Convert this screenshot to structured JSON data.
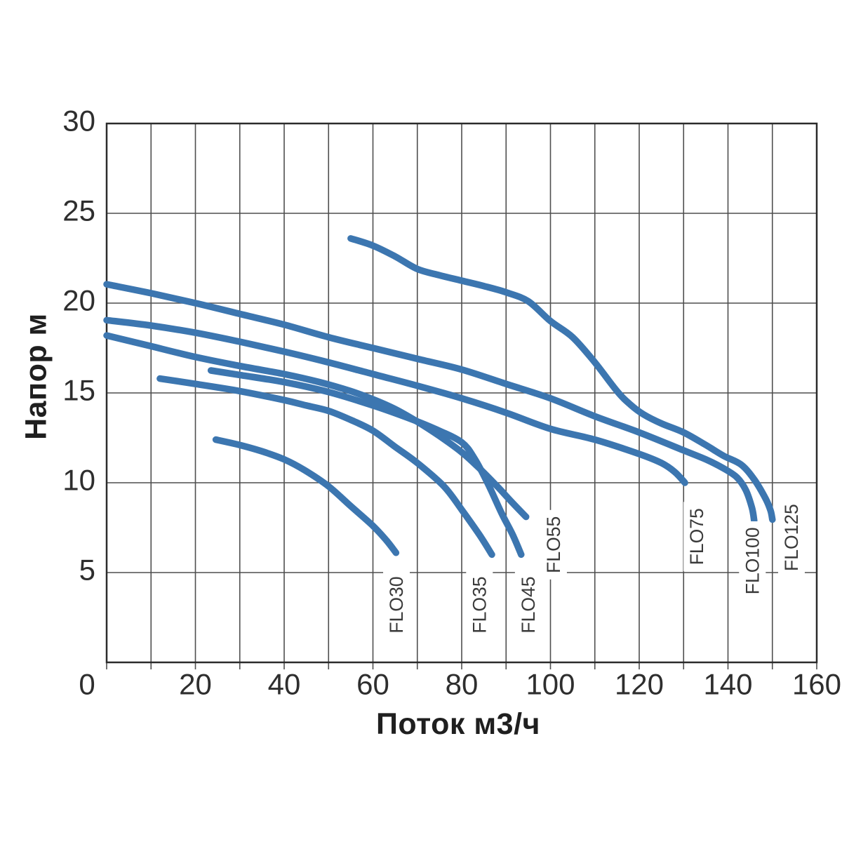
{
  "chart_data": {
    "type": "line",
    "title": "",
    "xlabel": "Поток м3/ч",
    "ylabel": "Напор м",
    "xlim": [
      0,
      160
    ],
    "ylim": [
      0,
      30
    ],
    "x_tick_labels": [
      0,
      20,
      40,
      60,
      80,
      100,
      120,
      140,
      160
    ],
    "x_grid_step": 10,
    "y_tick_labels": [
      5,
      10,
      15,
      20,
      25,
      30
    ],
    "y_grid_step": 5,
    "grid": "on",
    "legend_position": "curve-end-labels-rotated",
    "series": [
      {
        "name": "FLO125",
        "points": [
          [
            55,
            23.6
          ],
          [
            60,
            23.2
          ],
          [
            65,
            22.6
          ],
          [
            70,
            21.9
          ],
          [
            75,
            21.55
          ],
          [
            80,
            21.25
          ],
          [
            85,
            20.95
          ],
          [
            90,
            20.6
          ],
          [
            95,
            20.1
          ],
          [
            100,
            19.0
          ],
          [
            105,
            18.1
          ],
          [
            110,
            16.7
          ],
          [
            115,
            15.1
          ],
          [
            118,
            14.35
          ],
          [
            121,
            13.8
          ],
          [
            125,
            13.3
          ],
          [
            130,
            12.8
          ],
          [
            135,
            12.1
          ],
          [
            139,
            11.5
          ],
          [
            143,
            11.0
          ],
          [
            146,
            10.15
          ],
          [
            148.5,
            9.1
          ],
          [
            149.6,
            8.45
          ],
          [
            150,
            7.95
          ]
        ],
        "label": {
          "x": 154.3,
          "y": 6.95
        }
      },
      {
        "name": "FLO100",
        "points": [
          [
            0,
            21.05
          ],
          [
            10,
            20.55
          ],
          [
            20,
            20.0
          ],
          [
            30,
            19.4
          ],
          [
            40,
            18.8
          ],
          [
            50,
            18.1
          ],
          [
            60,
            17.5
          ],
          [
            70,
            16.9
          ],
          [
            80,
            16.3
          ],
          [
            90,
            15.5
          ],
          [
            100,
            14.7
          ],
          [
            110,
            13.7
          ],
          [
            120,
            12.8
          ],
          [
            130,
            11.8
          ],
          [
            135,
            11.3
          ],
          [
            139,
            10.8
          ],
          [
            142,
            10.3
          ],
          [
            144,
            9.6
          ],
          [
            145.4,
            8.6
          ],
          [
            145.9,
            7.9
          ]
        ],
        "label": {
          "x": 145.5,
          "y": 5.65
        }
      },
      {
        "name": "FLO75",
        "points": [
          [
            0,
            19.05
          ],
          [
            10,
            18.75
          ],
          [
            20,
            18.35
          ],
          [
            30,
            17.85
          ],
          [
            40,
            17.3
          ],
          [
            50,
            16.7
          ],
          [
            60,
            16.05
          ],
          [
            70,
            15.4
          ],
          [
            80,
            14.7
          ],
          [
            90,
            13.9
          ],
          [
            100,
            13.0
          ],
          [
            110,
            12.4
          ],
          [
            120,
            11.6
          ],
          [
            125,
            11.1
          ],
          [
            128,
            10.6
          ],
          [
            130.3,
            10.0
          ]
        ],
        "label": {
          "x": 133.0,
          "y": 7.0
        }
      },
      {
        "name": "FLO55",
        "points": [
          [
            0,
            18.2
          ],
          [
            10,
            17.6
          ],
          [
            20,
            17.0
          ],
          [
            30,
            16.5
          ],
          [
            40,
            16.05
          ],
          [
            48,
            15.6
          ],
          [
            55,
            15.1
          ],
          [
            60,
            14.65
          ],
          [
            65,
            14.1
          ],
          [
            70,
            13.4
          ],
          [
            75,
            12.6
          ],
          [
            80,
            11.7
          ],
          [
            84,
            10.8
          ],
          [
            88,
            9.8
          ],
          [
            91,
            9.0
          ],
          [
            94.5,
            8.1
          ]
        ],
        "label": {
          "x": 100.7,
          "y": 6.55
        }
      },
      {
        "name": "FLO45",
        "points": [
          [
            23.5,
            16.25
          ],
          [
            30,
            16.0
          ],
          [
            40,
            15.6
          ],
          [
            50,
            15.05
          ],
          [
            60,
            14.3
          ],
          [
            68,
            13.6
          ],
          [
            74,
            13.0
          ],
          [
            80,
            12.25
          ],
          [
            83,
            11.3
          ],
          [
            86,
            9.9
          ],
          [
            89,
            8.3
          ],
          [
            91.5,
            7.1
          ],
          [
            93.4,
            6.0
          ]
        ],
        "label": {
          "x": 95.0,
          "y": 3.2
        }
      },
      {
        "name": "FLO35",
        "points": [
          [
            12,
            15.8
          ],
          [
            20,
            15.5
          ],
          [
            30,
            15.1
          ],
          [
            40,
            14.6
          ],
          [
            45,
            14.3
          ],
          [
            50,
            14.0
          ],
          [
            55,
            13.5
          ],
          [
            60,
            12.9
          ],
          [
            65,
            12.0
          ],
          [
            70,
            11.1
          ],
          [
            76,
            9.8
          ],
          [
            80,
            8.5
          ],
          [
            84,
            7.1
          ],
          [
            86.8,
            6.0
          ]
        ],
        "label": {
          "x": 84.0,
          "y": 3.2
        }
      },
      {
        "name": "FLO30",
        "points": [
          [
            24.6,
            12.4
          ],
          [
            30,
            12.1
          ],
          [
            35,
            11.75
          ],
          [
            40,
            11.3
          ],
          [
            44.6,
            10.7
          ],
          [
            50,
            9.8
          ],
          [
            55,
            8.7
          ],
          [
            60,
            7.6
          ],
          [
            63,
            6.8
          ],
          [
            65.2,
            6.1
          ]
        ],
        "label": {
          "x": 65.3,
          "y": 3.2
        }
      }
    ]
  },
  "style": {
    "curve_color": "#3C76B0",
    "grid_color": "#4f4f4f",
    "border_color": "#2b2b2b",
    "tick_text_color": "#2e2e2e",
    "curve_label_color": "#3a3a3a",
    "background": "#ffffff"
  }
}
